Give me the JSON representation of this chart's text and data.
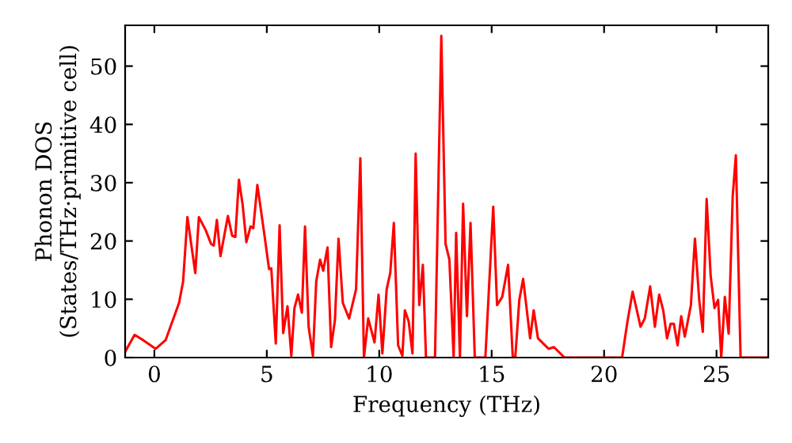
{
  "chart_data": {
    "type": "line",
    "xlabel": "Frequency (THz)",
    "ylabel": "Phonon DOS\n(States/THz·primitive cell)",
    "xlim": [
      -1.3,
      27.3
    ],
    "ylim": [
      0,
      57
    ],
    "xticks": [
      0,
      5,
      10,
      15,
      20,
      25
    ],
    "yticks": [
      0,
      10,
      20,
      30,
      40,
      50
    ],
    "grid": false,
    "legend": false,
    "marker": "none",
    "line_style": "solid",
    "series": [
      {
        "color": "#ff0000",
        "x": [
          -1.3,
          -0.88,
          -0.5,
          0.06,
          0.5,
          1.1,
          1.28,
          1.47,
          1.82,
          1.98,
          2.29,
          2.52,
          2.64,
          2.78,
          2.94,
          3.27,
          3.46,
          3.6,
          3.76,
          3.92,
          4.09,
          4.28,
          4.4,
          4.58,
          4.86,
          5.1,
          5.2,
          5.4,
          5.57,
          5.73,
          5.92,
          6.09,
          6.23,
          6.39,
          6.56,
          6.7,
          6.86,
          7.05,
          7.2,
          7.37,
          7.51,
          7.7,
          7.86,
          8.03,
          8.19,
          8.38,
          8.66,
          8.97,
          9.16,
          9.32,
          9.51,
          9.79,
          9.97,
          10.14,
          10.33,
          10.49,
          10.65,
          10.84,
          11.03,
          11.14,
          11.31,
          11.48,
          11.62,
          11.78,
          11.94,
          12.08,
          12.48,
          12.76,
          12.95,
          13.12,
          13.31,
          13.42,
          13.59,
          13.73,
          13.9,
          14.06,
          14.25,
          14.72,
          15.07,
          15.24,
          15.47,
          15.73,
          15.94,
          16.05,
          16.23,
          16.4,
          16.71,
          16.87,
          17.06,
          17.53,
          17.77,
          18.24,
          20.8,
          21.04,
          21.27,
          21.62,
          21.81,
          22.05,
          22.26,
          22.45,
          22.63,
          22.8,
          22.96,
          23.1,
          23.27,
          23.43,
          23.59,
          23.86,
          24.04,
          24.23,
          24.39,
          24.56,
          24.74,
          24.91,
          25.07,
          25.21,
          25.37,
          25.54,
          25.72,
          25.86,
          26.07,
          27.3
        ],
        "values": [
          1.0,
          3.9,
          3.0,
          1.5,
          3.0,
          9.4,
          13.1,
          24.1,
          14.5,
          24.1,
          21.8,
          19.5,
          19.2,
          23.6,
          17.4,
          24.3,
          20.9,
          20.7,
          30.5,
          26.4,
          19.8,
          22.5,
          22.2,
          29.6,
          22.0,
          15.2,
          15.3,
          2.4,
          22.7,
          4.2,
          8.8,
          0.3,
          8.5,
          10.8,
          7.7,
          22.5,
          5.3,
          0.3,
          13.1,
          16.8,
          14.9,
          18.9,
          1.8,
          6.4,
          20.4,
          9.4,
          6.7,
          11.7,
          34.2,
          0,
          6.7,
          2.6,
          10.8,
          0.7,
          11.7,
          14.5,
          23.1,
          2.1,
          0.3,
          8.1,
          6.2,
          0.7,
          35.0,
          9.0,
          15.9,
          0,
          0,
          55.2,
          19.5,
          16.8,
          0,
          21.4,
          0,
          26.4,
          7.1,
          23.1,
          0,
          0,
          25.9,
          9.0,
          10.4,
          15.9,
          0,
          0,
          9.9,
          13.5,
          3.3,
          8.1,
          3.3,
          1.5,
          1.8,
          0,
          0,
          6.2,
          11.3,
          5.3,
          6.7,
          12.2,
          5.3,
          10.8,
          8.1,
          3.3,
          5.8,
          5.8,
          2.1,
          7.1,
          3.6,
          9.0,
          20.4,
          9.9,
          4.4,
          27.2,
          14.0,
          8.5,
          9.9,
          0,
          10.4,
          4.1,
          27.7,
          34.7,
          0,
          0
        ]
      }
    ]
  }
}
